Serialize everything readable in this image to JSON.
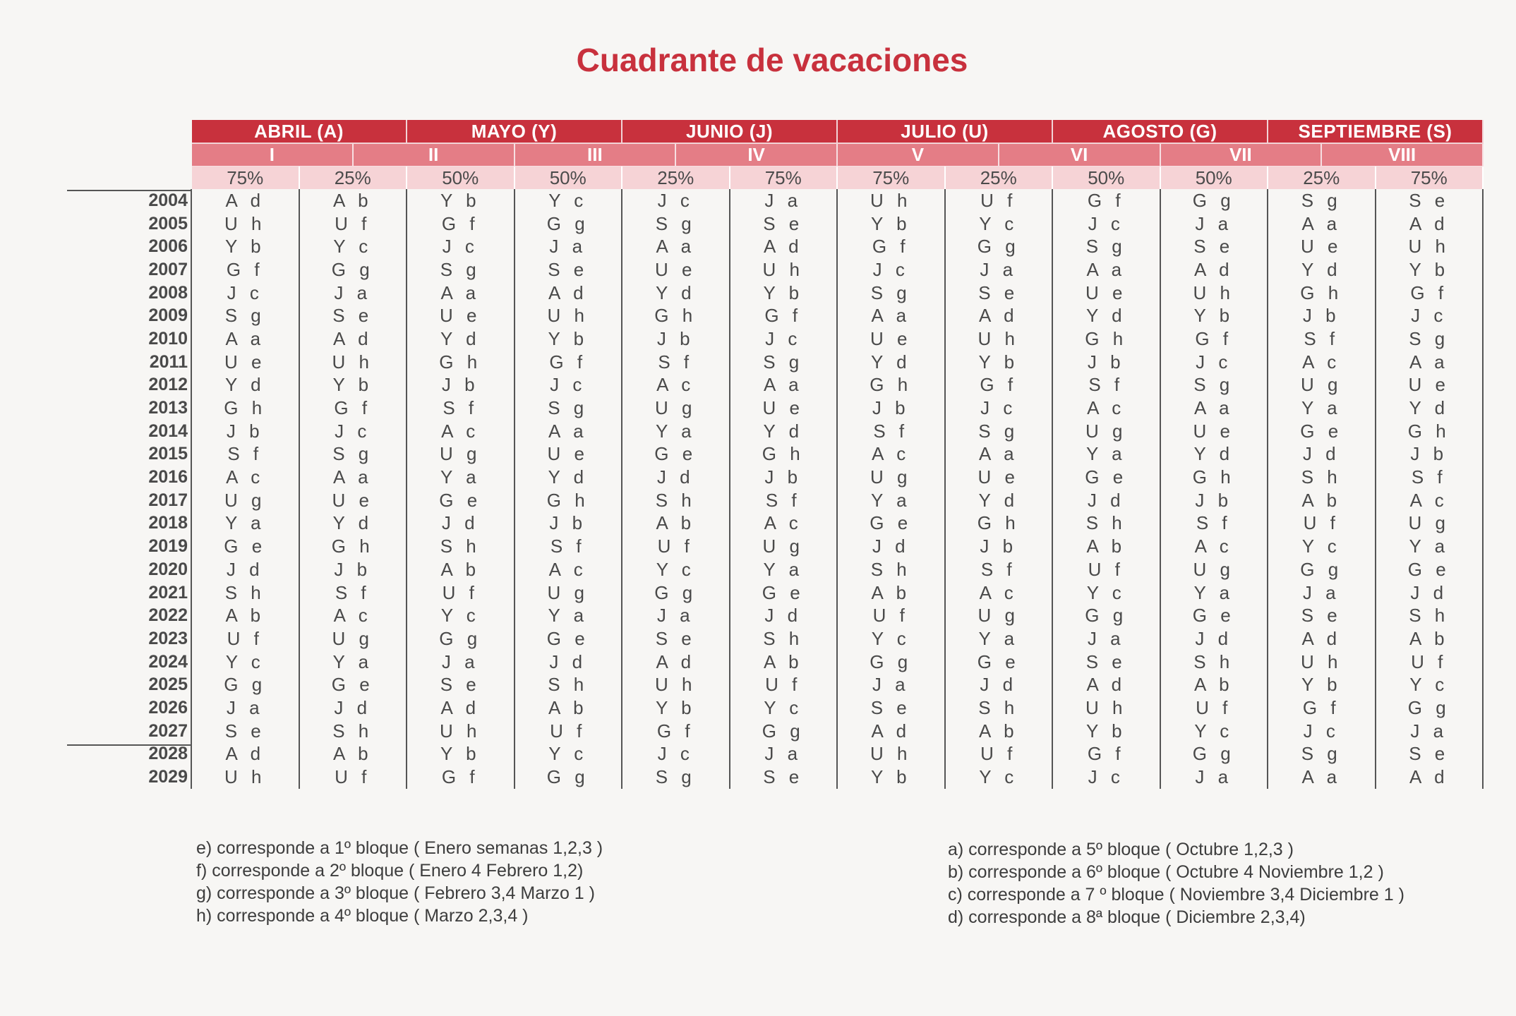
{
  "title": "Cuadrante de vacaciones",
  "months": [
    "ABRIL (A)",
    "MAYO (Y)",
    "JUNIO (J)",
    "JULIO (U)",
    "AGOSTO (G)",
    "SEPTIEMBRE (S)"
  ],
  "blocks": [
    {
      "label": "I"
    },
    {
      "label": "II"
    },
    {
      "label": "III"
    },
    {
      "label": "IV"
    },
    {
      "label": "V"
    },
    {
      "label": "VI"
    },
    {
      "label": "VII"
    },
    {
      "label": "VIII"
    }
  ],
  "percents": [
    "75%",
    "25%",
    "50%",
    "50%",
    "25%",
    "75%",
    "75%",
    "25%",
    "50%",
    "50%",
    "25%",
    "75%"
  ],
  "rows": [
    {
      "year": "2004",
      "values": [
        "A d",
        "A b",
        "Y b",
        "Y c",
        "J c",
        "J a",
        "U h",
        "U f",
        "G f",
        "G g",
        "S g",
        "S e"
      ]
    },
    {
      "year": "2005",
      "values": [
        "U h",
        "U f",
        "G f",
        "G g",
        "S g",
        "S e",
        "Y b",
        "Y c",
        "J c",
        "J a",
        "A a",
        "A d"
      ]
    },
    {
      "year": "2006",
      "values": [
        "Y b",
        "Y c",
        "J c",
        "J a",
        "A a",
        "A d",
        "G f",
        "G g",
        "S g",
        "S e",
        "U e",
        "U h"
      ]
    },
    {
      "year": "2007",
      "values": [
        "G f",
        "G g",
        "S g",
        "S e",
        "U e",
        "U h",
        "J c",
        "J a",
        "A a",
        "A d",
        "Y d",
        "Y b"
      ]
    },
    {
      "year": "2008",
      "values": [
        "J c",
        "J a",
        "A a",
        "A d",
        "Y d",
        "Y b",
        "S g",
        "S e",
        "U e",
        "U h",
        "G h",
        "G f"
      ]
    },
    {
      "year": "2009",
      "values": [
        "S g",
        "S e",
        "U e",
        "U h",
        "G h",
        "G f",
        "A a",
        "A d",
        "Y d",
        "Y b",
        "J b",
        "J c"
      ]
    },
    {
      "year": "2010",
      "values": [
        "A a",
        "A d",
        "Y d",
        "Y b",
        "J b",
        "J c",
        "U e",
        "U h",
        "G h",
        "G f",
        "S f",
        "S g"
      ]
    },
    {
      "year": "2011",
      "values": [
        "U e",
        "U h",
        "G h",
        "G f",
        "S f",
        "S g",
        "Y d",
        "Y b",
        "J b",
        "J c",
        "A c",
        "A a"
      ]
    },
    {
      "year": "2012",
      "values": [
        "Y d",
        "Y b",
        "J b",
        "J c",
        "A c",
        "A a",
        "G h",
        "G f",
        "S f",
        "S g",
        "U g",
        "U e"
      ]
    },
    {
      "year": "2013",
      "values": [
        "G h",
        "G f",
        "S f",
        "S g",
        "U g",
        "U e",
        "J b",
        "J c",
        "A c",
        "A a",
        "Y a",
        "Y d"
      ]
    },
    {
      "year": "2014",
      "values": [
        "J b",
        "J c",
        "A c",
        "A a",
        "Y a",
        "Y d",
        "S f",
        "S g",
        "U g",
        "U e",
        "G e",
        "G h"
      ]
    },
    {
      "year": "2015",
      "values": [
        "S f",
        "S g",
        "U g",
        "U e",
        "G e",
        "G h",
        "A c",
        "A a",
        "Y a",
        "Y d",
        "J d",
        "J b"
      ]
    },
    {
      "year": "2016",
      "values": [
        "A c",
        "A a",
        "Y a",
        "Y d",
        "J d",
        "J b",
        "U g",
        "U e",
        "G e",
        "G h",
        "S h",
        "S f"
      ]
    },
    {
      "year": "2017",
      "values": [
        "U g",
        "U e",
        "G e",
        "G h",
        "S h",
        "S f",
        "Y a",
        "Y d",
        "J d",
        "J b",
        "A b",
        "A c"
      ]
    },
    {
      "year": "2018",
      "values": [
        "Y a",
        "Y d",
        "J d",
        "J b",
        "A b",
        "A c",
        "G e",
        "G h",
        "S h",
        "S f",
        "U f",
        "U g"
      ]
    },
    {
      "year": "2019",
      "values": [
        "G e",
        "G h",
        "S h",
        "S f",
        "U f",
        "U g",
        "J d",
        "J b",
        "A b",
        "A c",
        "Y c",
        "Y a"
      ]
    },
    {
      "year": "2020",
      "values": [
        "J d",
        "J b",
        "A b",
        "A c",
        "Y c",
        "Y a",
        "S h",
        "S f",
        "U f",
        "U g",
        "G g",
        "G e"
      ]
    },
    {
      "year": "2021",
      "values": [
        "S h",
        "S f",
        "U f",
        "U g",
        "G g",
        "G e",
        "A b",
        "A c",
        "Y c",
        "Y a",
        "J a",
        "J d"
      ]
    },
    {
      "year": "2022",
      "values": [
        "A b",
        "A c",
        "Y c",
        "Y a",
        "J a",
        "J d",
        "U f",
        "U g",
        "G g",
        "G e",
        "S e",
        "S h"
      ]
    },
    {
      "year": "2023",
      "values": [
        "U f",
        "U g",
        "G g",
        "G e",
        "S e",
        "S h",
        "Y c",
        "Y a",
        "J a",
        "J d",
        "A d",
        "A b"
      ]
    },
    {
      "year": "2024",
      "values": [
        "Y c",
        "Y a",
        "J a",
        "J d",
        "A d",
        "A b",
        "G g",
        "G e",
        "S e",
        "S h",
        "U h",
        "U f"
      ]
    },
    {
      "year": "2025",
      "values": [
        "G g",
        "G e",
        "S e",
        "S h",
        "U h",
        "U f",
        "J a",
        "J d",
        "A d",
        "A b",
        "Y b",
        "Y c"
      ]
    },
    {
      "year": "2026",
      "values": [
        "J a",
        "J d",
        "A d",
        "A b",
        "Y b",
        "Y c",
        "S e",
        "S h",
        "U h",
        "U f",
        "G f",
        "G g"
      ]
    },
    {
      "year": "2027",
      "values": [
        "S e",
        "S h",
        "U h",
        "U f",
        "G f",
        "G g",
        "A d",
        "A b",
        "Y b",
        "Y c",
        "J c",
        "J a"
      ]
    },
    {
      "year": "2028",
      "values": [
        "A d",
        "A b",
        "Y b",
        "Y c",
        "J c",
        "J a",
        "U h",
        "U f",
        "G f",
        "G g",
        "S g",
        "S e"
      ]
    },
    {
      "year": "2029",
      "values": [
        "U h",
        "U f",
        "G f",
        "G g",
        "S g",
        "S e",
        "Y b",
        "Y c",
        "J c",
        "J a",
        "A a",
        "A d"
      ]
    }
  ],
  "notes_left": [
    "e) corresponde a 1º bloque ( Enero semanas 1,2,3 )",
    "f) corresponde a 2º bloque ( Enero 4 Febrero 1,2)",
    "g) corresponde a 3º bloque ( Febrero 3,4 Marzo 1 )",
    "h) corresponde a 4º bloque ( Marzo 2,3,4 )"
  ],
  "notes_right": [
    "a) corresponde a 5º bloque ( Octubre 1,2,3 )",
    "b) corresponde a 6º bloque ( Octubre 4 Noviembre 1,2 )",
    "c) corresponde a 7 º bloque ( Noviembre 3,4 Diciembre 1 )",
    "d) corresponde a 8ª bloque ( Diciembre 2,3,4)"
  ]
}
